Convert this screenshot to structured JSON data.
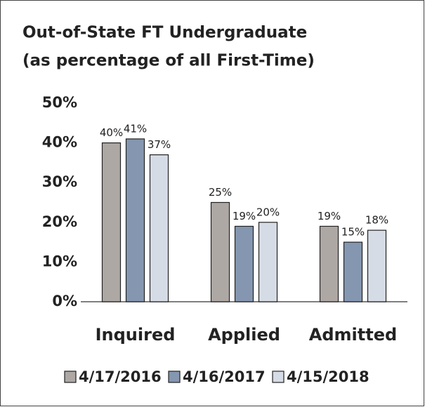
{
  "chart_data": {
    "type": "bar",
    "title": [
      "Out-of-State FT Undergraduate",
      "(as percentage of all First-Time)"
    ],
    "categories": [
      "Inquired",
      "Applied",
      "Admitted"
    ],
    "series": [
      {
        "name": "4/17/2016",
        "color": "#aea8a5",
        "values": [
          40,
          25,
          19
        ],
        "value_labels": [
          "40%",
          "25%",
          "19%"
        ]
      },
      {
        "name": "4/16/2017",
        "color": "#8496b0",
        "values": [
          41,
          19,
          15
        ],
        "value_labels": [
          "41%",
          "19%",
          "15%"
        ]
      },
      {
        "name": "4/15/2018",
        "color": "#d6dce5",
        "values": [
          37,
          20,
          18
        ],
        "value_labels": [
          "37%",
          "20%",
          "18%"
        ]
      }
    ],
    "ylim": [
      0,
      50
    ],
    "yticks": [
      {
        "value": 0,
        "label": "0%"
      },
      {
        "value": 10,
        "label": "10%"
      },
      {
        "value": 20,
        "label": "20%"
      },
      {
        "value": 30,
        "label": "30%"
      },
      {
        "value": 40,
        "label": "40%"
      },
      {
        "value": 50,
        "label": "50%"
      }
    ],
    "grid": false,
    "legend": "bottom"
  }
}
